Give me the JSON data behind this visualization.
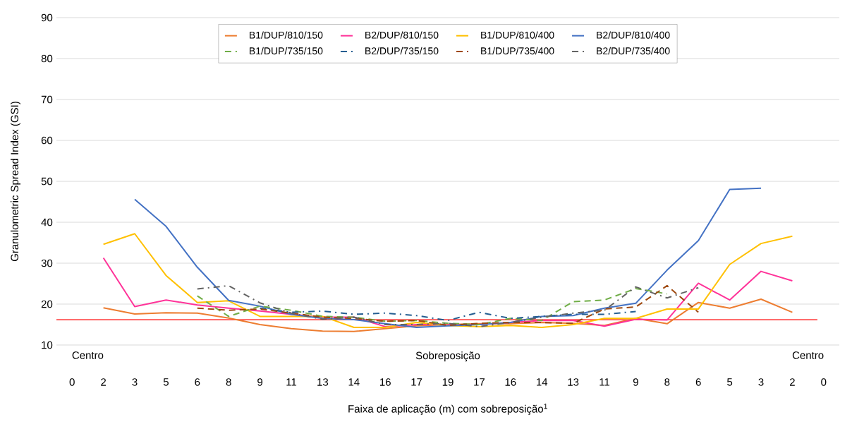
{
  "chart_data": {
    "type": "line",
    "xlabel": "Faixa de aplicação (m) com sobreposição$^{1}$",
    "ylabel": "Granulometric Spread Index (GSI)",
    "categories": [
      "0",
      "2",
      "3",
      "5",
      "6",
      "8",
      "9",
      "11",
      "13",
      "14",
      "16",
      "17",
      "19",
      "17",
      "16",
      "14",
      "13",
      "11",
      "9",
      "8",
      "6",
      "5",
      "3",
      "2",
      "0"
    ],
    "series": [
      {
        "name": "B1/DUP/810/150",
        "color": "#ed7d31",
        "line_style": "solid",
        "values": [
          null,
          19.1,
          17.6,
          17.9,
          17.8,
          16.6,
          15,
          14,
          13.4,
          13.3,
          14,
          14.7,
          15,
          15.2,
          15.2,
          15.5,
          15.3,
          14.8,
          16.5,
          15.2,
          20.4,
          19,
          21.2,
          18,
          null
        ]
      },
      {
        "name": "B2/DUP/810/150",
        "color": "#ff3399",
        "line_style": "solid",
        "values": [
          null,
          31.3,
          19.4,
          21,
          19.8,
          19,
          18.3,
          17.5,
          16.8,
          16.8,
          14.5,
          15,
          15,
          15,
          15.5,
          16,
          16,
          14.6,
          16.3,
          16.1,
          25.1,
          21,
          28,
          25.7,
          null
        ]
      },
      {
        "name": "B1/DUP/810/400",
        "color": "#ffc000",
        "line_style": "solid",
        "values": [
          null,
          34.6,
          37.2,
          27,
          20.4,
          20.8,
          17,
          17,
          17,
          14.3,
          14.3,
          15.5,
          14.8,
          14.5,
          14.8,
          14.3,
          15,
          16.5,
          16.5,
          18.8,
          18.8,
          29.7,
          34.8,
          36.6,
          null
        ]
      },
      {
        "name": "B2/DUP/810/400",
        "color": "#4472c4",
        "line_style": "solid",
        "values": [
          null,
          null,
          45.6,
          39,
          29,
          20.9,
          19.5,
          17.5,
          16.5,
          16.2,
          15.2,
          14.3,
          14.7,
          15,
          15.5,
          17,
          17.2,
          19,
          20.2,
          28.3,
          35.5,
          48,
          48.3,
          null,
          null
        ]
      },
      {
        "name": "B1/DUP/735/150",
        "color": "#70ad47",
        "line_style": "dashed",
        "values": [
          null,
          null,
          null,
          null,
          22,
          17,
          19.5,
          18.5,
          17,
          16.8,
          15.8,
          16,
          15.3,
          15,
          16.5,
          16,
          20.6,
          21,
          23.8,
          22.5,
          null,
          null,
          null,
          null,
          null
        ]
      },
      {
        "name": "B2/DUP/735/150",
        "color": "#255e91",
        "line_style": "dashdot",
        "values": [
          null,
          null,
          null,
          null,
          null,
          null,
          19,
          18,
          18.3,
          17.5,
          17.8,
          17.2,
          16,
          18,
          16.5,
          17,
          17.5,
          17.5,
          18.2,
          null,
          null,
          null,
          null,
          null,
          null
        ]
      },
      {
        "name": "B1/DUP/735/400",
        "color": "#9e480e",
        "line_style": "dashed",
        "values": [
          null,
          null,
          null,
          null,
          19,
          18.5,
          18.8,
          17.8,
          16.8,
          16.5,
          15.8,
          16,
          14.8,
          15.3,
          15.5,
          15.5,
          15.3,
          18.8,
          19.3,
          24.5,
          18,
          null,
          null,
          null,
          null
        ]
      },
      {
        "name": "B2/DUP/735/400",
        "color": "#636363",
        "line_style": "dashdot",
        "values": [
          null,
          null,
          null,
          null,
          23.7,
          24.5,
          20.3,
          17.8,
          16.3,
          16.8,
          15,
          15,
          15.3,
          14.5,
          15.5,
          16.8,
          17.8,
          18.5,
          24.2,
          21.5,
          24,
          null,
          null,
          null,
          null
        ]
      }
    ],
    "ylim": [
      10,
      90
    ],
    "yticks": [
      10,
      20,
      30,
      40,
      50,
      60,
      70,
      80,
      90
    ],
    "grid": "y",
    "legend": "top",
    "ref_lines": [
      {
        "axis": "y",
        "value": 16.2,
        "color": "#ff0000"
      }
    ],
    "annotations": [
      "Centro",
      "Sobreposição",
      "Centro"
    ]
  }
}
